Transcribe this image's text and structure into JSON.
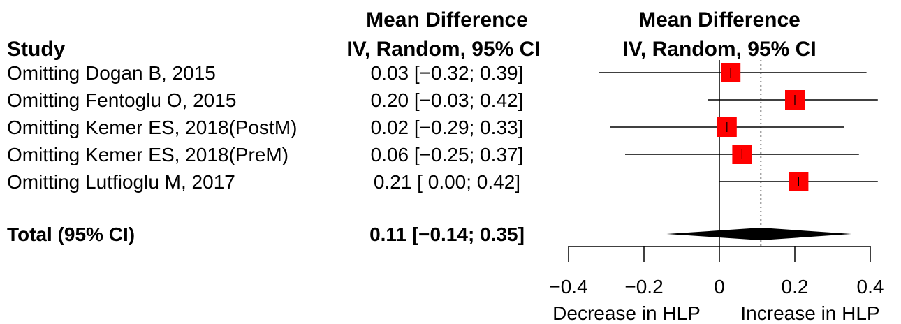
{
  "chart_data": {
    "type": "forest",
    "left_header": "Study",
    "effect_header": [
      "Mean Difference",
      "IV, Random, 95% CI"
    ],
    "plot_header": [
      "Mean Difference",
      "IV, Random, 95% CI"
    ],
    "studies": [
      {
        "label": "Omitting Dogan B, 2015",
        "est": 0.03,
        "lo": -0.32,
        "hi": 0.39,
        "text": "0.03 [−0.32; 0.39]"
      },
      {
        "label": "Omitting Fentoglu O, 2015",
        "est": 0.2,
        "lo": -0.03,
        "hi": 0.42,
        "text": "0.20 [−0.03; 0.42]"
      },
      {
        "label": "Omitting Kemer ES, 2018(PostM)",
        "est": 0.02,
        "lo": -0.29,
        "hi": 0.33,
        "text": "0.02 [−0.29; 0.33]"
      },
      {
        "label": "Omitting Kemer ES, 2018(PreM)",
        "est": 0.06,
        "lo": -0.25,
        "hi": 0.37,
        "text": "0.06 [−0.25; 0.37]"
      },
      {
        "label": "Omitting Lutfioglu M, 2017",
        "est": 0.21,
        "lo": 0.0,
        "hi": 0.42,
        "text": "0.21 [ 0.00; 0.42]"
      }
    ],
    "total": {
      "label": "Total (95% CI)",
      "est": 0.11,
      "lo": -0.14,
      "hi": 0.35,
      "text": "0.11 [−0.14; 0.35]"
    },
    "x_ticks": [
      -0.4,
      -0.2,
      0,
      0.2,
      0.4
    ],
    "x_tick_labels": [
      "−0.4",
      "−0.2",
      "0",
      "0.2",
      "0.4"
    ],
    "xlim": [
      -0.4,
      0.4
    ],
    "xlabel_left": "Decrease in HLP",
    "xlabel_right": "Increase in HLP",
    "colors": {
      "square": "#ff0000",
      "line": "#000000",
      "diamond": "#000000"
    }
  }
}
